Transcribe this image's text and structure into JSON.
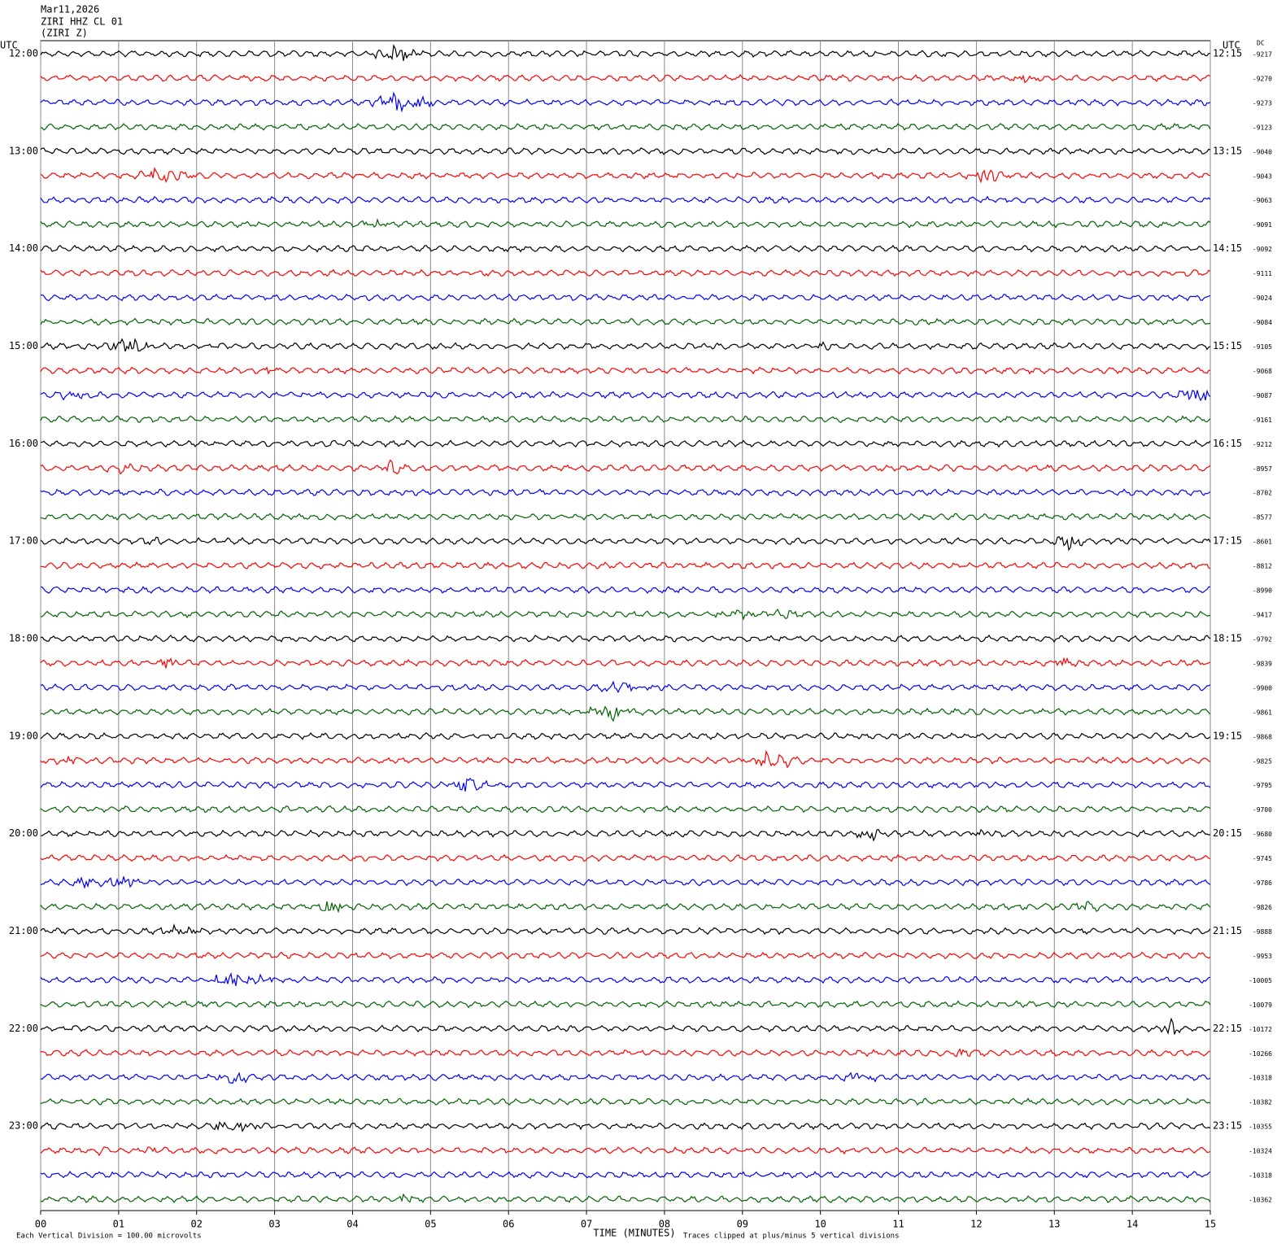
{
  "header": {
    "date": "Mar11,2026",
    "station": "ZIRI HHZ CL 01",
    "channel": "(ZIRI Z)"
  },
  "left_label": "UTC",
  "right_label": "UTC",
  "dc_label": "DC",
  "rows": {
    "left_times": [
      "12:00",
      "13:00",
      "14:00",
      "15:00",
      "16:00",
      "17:00",
      "18:00",
      "19:00",
      "20:00",
      "21:00",
      "22:00",
      "23:00"
    ],
    "right_times": [
      "12:15",
      "13:15",
      "14:15",
      "15:15",
      "16:15",
      "17:15",
      "18:15",
      "19:15",
      "20:15",
      "21:15",
      "22:15",
      "23:15"
    ],
    "dc_values": [
      -9217,
      -9270,
      -9273,
      -9123,
      -9040,
      -9043,
      -9063,
      -9091,
      -9092,
      -9111,
      -9024,
      -9084,
      -9105,
      -9068,
      -9087,
      -9161,
      -9212,
      -8957,
      -8702,
      -8577,
      -8601,
      -8812,
      -8990,
      -9417,
      -9792,
      -9839,
      -9900,
      -9861,
      -9868,
      -9825,
      -9795,
      -9700,
      -9680,
      -9745,
      -9786,
      -9826,
      -9888,
      -9953,
      -10005,
      -10079,
      -10172,
      -10266,
      -10318,
      -10382,
      -10355,
      -10324,
      -10318,
      -10362
    ],
    "trace_colors": [
      "#000000",
      "#ff0000",
      "#0000ff",
      "#006400"
    ]
  },
  "x_axis": {
    "xlim": [
      0,
      15
    ],
    "xticks": [
      {
        "value": 0,
        "label": "00"
      },
      {
        "value": 1,
        "label": "01"
      },
      {
        "value": 2,
        "label": "02"
      },
      {
        "value": 3,
        "label": "03"
      },
      {
        "value": 4,
        "label": "04"
      },
      {
        "value": 5,
        "label": "05"
      },
      {
        "value": 6,
        "label": "06"
      },
      {
        "value": 7,
        "label": "07"
      },
      {
        "value": 8,
        "label": "08"
      },
      {
        "value": 9,
        "label": "09"
      },
      10,
      11,
      12,
      13,
      14,
      15
    ],
    "label": "TIME (MINUTES)"
  },
  "footer": {
    "scale": "Each Vertical Division =  100.00 microvolts",
    "clip": "Traces clipped at plus/minus 5 vertical divisions"
  }
}
